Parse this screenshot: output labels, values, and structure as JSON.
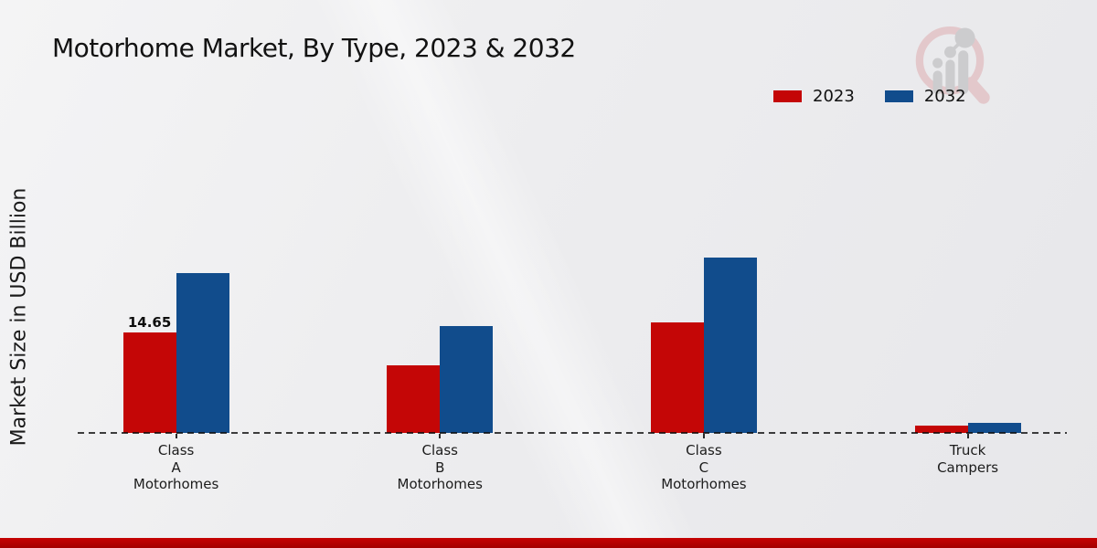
{
  "title": "Motorhome Market, By Type, 2023 & 2032",
  "ylabel": "Market Size in USD Billion",
  "legend": [
    {
      "label": "2023",
      "color": "#c40606"
    },
    {
      "label": "2032",
      "color": "#114c8c"
    }
  ],
  "watermark_icon": "market-research-future-logo",
  "footer_band_color": "#b80202",
  "chart_data": {
    "type": "bar",
    "title": "Motorhome Market, By Type, 2023 & 2032",
    "xlabel": "",
    "ylabel": "Market Size in USD Billion",
    "categories": [
      "Class A Motorhomes",
      "Class B Motorhomes",
      "Class C Motorhomes",
      "Truck Campers"
    ],
    "category_label_lines": [
      [
        "Class",
        "A",
        "Motorhomes"
      ],
      [
        "Class",
        "B",
        "Motorhomes"
      ],
      [
        "Class",
        "C",
        "Motorhomes"
      ],
      [
        "Truck",
        "Campers"
      ]
    ],
    "series": [
      {
        "name": "2023",
        "color": "#c40606",
        "values": [
          14.65,
          9.8,
          16.1,
          1.1
        ]
      },
      {
        "name": "2032",
        "color": "#114c8c",
        "values": [
          23.2,
          15.5,
          25.5,
          1.4
        ]
      }
    ],
    "annotations": [
      {
        "series": "2023",
        "category_index": 0,
        "text": "14.65"
      }
    ],
    "ylim": [
      0,
      26
    ],
    "grid": false,
    "baseline_style": "dashed",
    "legend_position": "top-right"
  }
}
